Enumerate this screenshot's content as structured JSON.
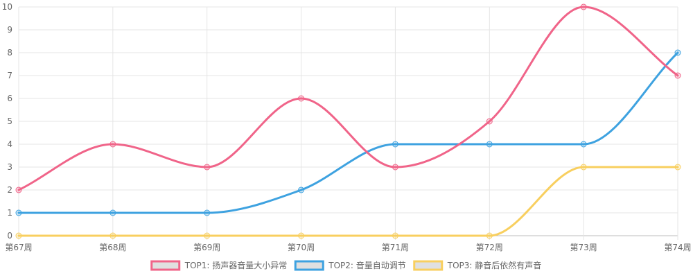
{
  "chart_data": {
    "type": "line",
    "categories": [
      "第67周",
      "第68周",
      "第69周",
      "第70周",
      "第71周",
      "第72周",
      "第73周",
      "第74周"
    ],
    "ylim": [
      0,
      10
    ],
    "yticks": [
      0,
      1,
      2,
      3,
      4,
      5,
      6,
      7,
      8,
      9,
      10
    ],
    "grid": true,
    "legend_position": "bottom",
    "series": [
      {
        "name": "TOP1: 扬声器音量大小异常",
        "values": [
          2,
          4,
          3,
          6,
          3,
          5,
          10,
          7
        ],
        "color": "#f06489"
      },
      {
        "name": "TOP2: 音量自动调节",
        "values": [
          1,
          1,
          1,
          2,
          4,
          4,
          4,
          8
        ],
        "color": "#3ea2e0"
      },
      {
        "name": "TOP3: 静音后依然有声音",
        "values": [
          0,
          0,
          0,
          0,
          0,
          0,
          3,
          3
        ],
        "color": "#f8cf5f"
      }
    ]
  }
}
